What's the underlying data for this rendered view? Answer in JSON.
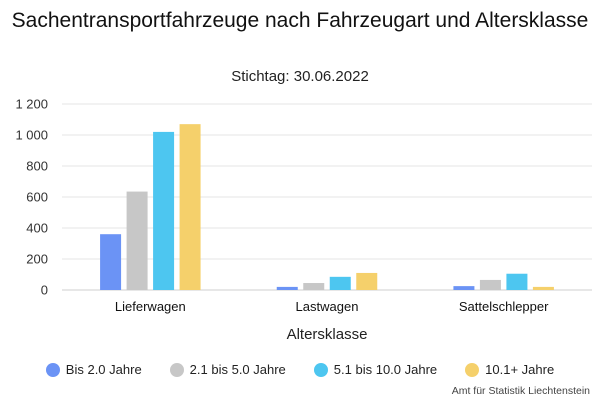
{
  "chart_data": {
    "type": "bar",
    "title": "Sachentransportfahrzeuge nach Fahrzeugart und Altersklasse",
    "subtitle": "Stichtag: 30.06.2022",
    "xlabel": "Altersklasse",
    "ylabel": "",
    "categories": [
      "Lieferwagen",
      "Lastwagen",
      "Sattelschlepper"
    ],
    "ylim": [
      0,
      1200
    ],
    "yticks": [
      0,
      200,
      400,
      600,
      800,
      1000,
      1200
    ],
    "ytick_labels": [
      "0",
      "200",
      "400",
      "600",
      "800",
      "1 000",
      "1 200"
    ],
    "grid": true,
    "legend_position": "bottom",
    "series": [
      {
        "name": "Bis 2.0 Jahre",
        "color": "#6b93f5",
        "values": [
          360,
          20,
          25
        ]
      },
      {
        "name": "2.1 bis 5.0 Jahre",
        "color": "#c7c7c7",
        "values": [
          635,
          45,
          65
        ]
      },
      {
        "name": "5.1 bis 10.0 Jahre",
        "color": "#4dc6f0",
        "values": [
          1020,
          85,
          105
        ]
      },
      {
        "name": "10.1+ Jahre",
        "color": "#f5d06b",
        "values": [
          1070,
          110,
          20
        ]
      }
    ]
  },
  "source": "Amt für Statistik Liechtenstein"
}
